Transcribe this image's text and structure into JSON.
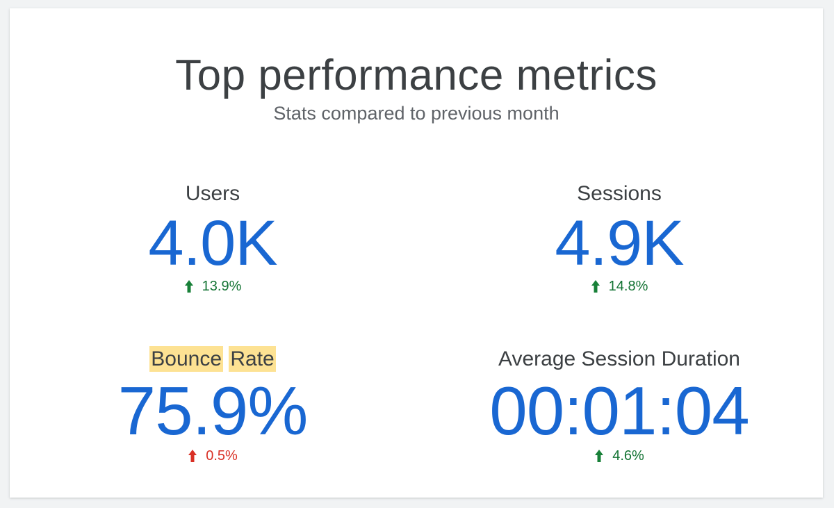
{
  "header": {
    "title": "Top performance metrics",
    "subtitle": "Stats compared to previous month"
  },
  "metrics": [
    {
      "label": "Users",
      "value": "4.0K",
      "delta": "13.9%",
      "direction": "up",
      "delta_color": "#137333"
    },
    {
      "label": "Sessions",
      "value": "4.9K",
      "delta": "14.8%",
      "direction": "up",
      "delta_color": "#137333"
    },
    {
      "label_words": [
        "Bounce",
        "Rate"
      ],
      "value": "75.9%",
      "delta": "0.5%",
      "direction": "up",
      "delta_color": "#d93025"
    },
    {
      "label": "Average Session Duration",
      "value": "00:01:04",
      "delta": "4.6%",
      "direction": "up",
      "delta_color": "#137333"
    }
  ],
  "colors": {
    "value": "#1967d2",
    "highlight": "#fde293",
    "positive": "#137333",
    "negative": "#d93025"
  },
  "icons": {
    "up_arrow": "arrow-up-icon"
  }
}
